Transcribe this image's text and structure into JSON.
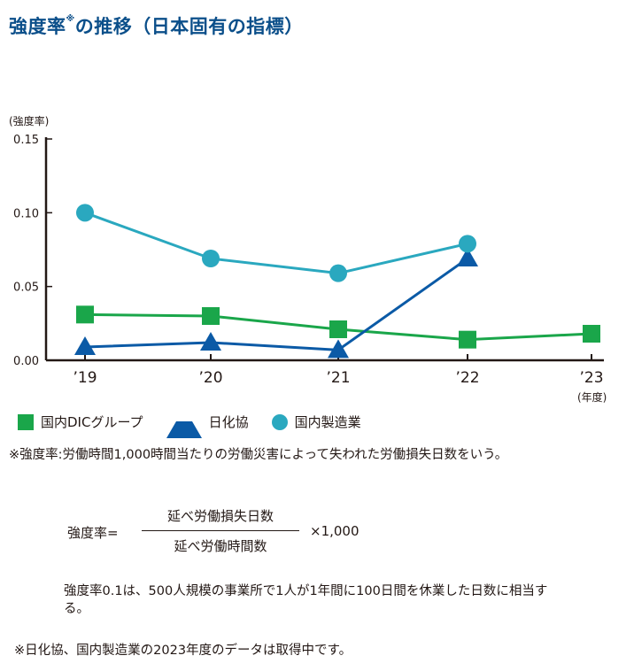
{
  "title": "強度率",
  "title_mark": "※",
  "title_rest": "の推移（日本固有の指標）",
  "chart_data": {
    "type": "line",
    "y_unit": "(強度率)",
    "x_unit": "(年度)",
    "categories": [
      "’19",
      "’20",
      "’21",
      "’22",
      "’23"
    ],
    "y_ticks": [
      "0.15",
      "0.10",
      "0.05",
      "0.00"
    ],
    "ylim": [
      0,
      0.15
    ],
    "grid": false,
    "legend_position": "bottom-left",
    "series": [
      {
        "name": "国内DICグループ",
        "marker": "square",
        "color": "#1aa64a",
        "values": [
          0.031,
          0.03,
          0.021,
          0.014,
          0.018
        ]
      },
      {
        "name": "日化協",
        "marker": "triangle",
        "color": "#0b5aa6",
        "values": [
          0.009,
          0.012,
          0.007,
          0.069,
          null
        ]
      },
      {
        "name": "国内製造業",
        "marker": "circle",
        "color": "#2aa8bf",
        "values": [
          0.1,
          0.069,
          0.059,
          0.079,
          null
        ]
      }
    ]
  },
  "legend": {
    "items": [
      "国内DICグループ",
      "日化協",
      "国内製造業"
    ]
  },
  "notes": {
    "definition": "※強度率:労働時間1,000時間当たりの労働災害によって失われた労働損失日数をいう。",
    "formula_lhs": "強度率=",
    "formula_numerator": "延べ労働損失日数",
    "formula_denominator": "延べ労働時間数",
    "formula_rhs": "×1,000",
    "example": "強度率0.1は、500人規模の事業所で1人が1年間に100日間を休業した日数に相当する。",
    "footnote": "※日化協、国内製造業の2023年度のデータは取得中です。"
  }
}
